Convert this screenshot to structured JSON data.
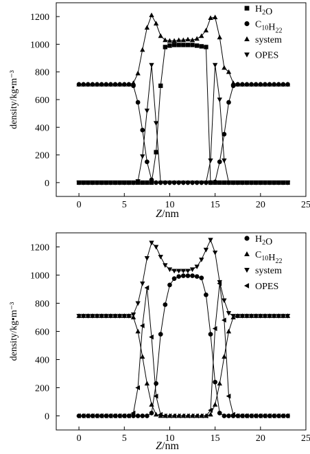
{
  "figure": {
    "panels_count": 2
  },
  "chart_data": [
    {
      "type": "line",
      "title": "",
      "xlabel": "Z/nm",
      "ylabel": "density/kg•m⁻³",
      "xlim": [
        -2.5,
        25
      ],
      "ylim": [
        -100,
        1300
      ],
      "xticks": [
        "0",
        "5",
        "10",
        "15",
        "20",
        "25"
      ],
      "yticks": [
        "0",
        "200",
        "400",
        "600",
        "800",
        "1000",
        "1200"
      ],
      "legend_position": "top-right",
      "legend": [
        "H₂O",
        "C₁₀H₂₂",
        "system",
        "OPES"
      ],
      "legend_parts": [
        {
          "base": "H",
          "sub1": "2",
          "mid": "O",
          "sub2": ""
        },
        {
          "base": "C",
          "sub1": "10",
          "mid": "H",
          "sub2": "22"
        },
        {
          "base": "system",
          "sub1": "",
          "mid": "",
          "sub2": ""
        },
        {
          "base": "OPES",
          "sub1": "",
          "mid": "",
          "sub2": ""
        }
      ],
      "series": [
        {
          "name": "H₂O",
          "marker": "square",
          "x": [
            0,
            0.5,
            1,
            1.5,
            2,
            2.5,
            3,
            3.5,
            4,
            4.5,
            5,
            5.5,
            6,
            6.5,
            7,
            7.5,
            8,
            8.5,
            9,
            9.5,
            10,
            10.5,
            11,
            11.5,
            12,
            12.5,
            13,
            13.5,
            14,
            14.5,
            15,
            15.5,
            16,
            16.5,
            17,
            17.5,
            18,
            18.5,
            19,
            19.5,
            20,
            20.5,
            21,
            21.5,
            22,
            22.5,
            23
          ],
          "y": [
            0,
            0,
            0,
            0,
            0,
            0,
            0,
            0,
            0,
            0,
            0,
            0,
            0,
            0,
            0,
            0,
            0,
            220,
            700,
            980,
            990,
            995,
            995,
            995,
            995,
            995,
            990,
            985,
            980,
            0,
            0,
            0,
            0,
            0,
            0,
            0,
            0,
            0,
            0,
            0,
            0,
            0,
            0,
            0,
            0,
            0,
            0
          ]
        },
        {
          "name": "C₁₀H₂₂",
          "marker": "circle",
          "x": [
            0,
            0.5,
            1,
            1.5,
            2,
            2.5,
            3,
            3.5,
            4,
            4.5,
            5,
            5.5,
            6,
            6.5,
            7,
            7.5,
            8,
            8.5,
            9,
            9.5,
            10,
            10.5,
            11,
            11.5,
            12,
            12.5,
            13,
            13.5,
            14,
            14.5,
            15,
            15.5,
            16,
            16.5,
            17,
            17.5,
            18,
            18.5,
            19,
            19.5,
            20,
            20.5,
            21,
            21.5,
            22,
            22.5,
            23
          ],
          "y": [
            710,
            710,
            710,
            710,
            710,
            710,
            710,
            710,
            710,
            710,
            710,
            710,
            700,
            580,
            380,
            150,
            20,
            0,
            0,
            0,
            0,
            0,
            0,
            0,
            0,
            0,
            0,
            0,
            0,
            0,
            5,
            150,
            350,
            580,
            700,
            710,
            710,
            710,
            710,
            710,
            710,
            710,
            710,
            710,
            710,
            710,
            710
          ]
        },
        {
          "name": "system",
          "marker": "triangle-up",
          "x": [
            0,
            0.5,
            1,
            1.5,
            2,
            2.5,
            3,
            3.5,
            4,
            4.5,
            5,
            5.5,
            6,
            6.5,
            7,
            7.5,
            8,
            8.5,
            9,
            9.5,
            10,
            10.5,
            11,
            11.5,
            12,
            12.5,
            13,
            13.5,
            14,
            14.5,
            15,
            15.5,
            16,
            16.5,
            17,
            17.5,
            18,
            18.5,
            19,
            19.5,
            20,
            20.5,
            21,
            21.5,
            22,
            22.5,
            23
          ],
          "y": [
            710,
            710,
            710,
            710,
            710,
            710,
            710,
            710,
            710,
            710,
            710,
            710,
            720,
            790,
            960,
            1120,
            1210,
            1150,
            1060,
            1030,
            1025,
            1025,
            1030,
            1030,
            1035,
            1030,
            1040,
            1060,
            1100,
            1190,
            1195,
            1050,
            830,
            800,
            720,
            710,
            710,
            710,
            710,
            710,
            710,
            710,
            710,
            710,
            710,
            710,
            710
          ]
        },
        {
          "name": "OPES",
          "marker": "triangle-down",
          "x": [
            0,
            0.5,
            1,
            1.5,
            2,
            2.5,
            3,
            3.5,
            4,
            4.5,
            5,
            5.5,
            6,
            6.5,
            7,
            7.5,
            8,
            8.5,
            9,
            9.5,
            10,
            10.5,
            11,
            11.5,
            12,
            12.5,
            13,
            13.5,
            14,
            14.5,
            15,
            15.5,
            16,
            16.5,
            17,
            17.5,
            18,
            18.5,
            19,
            19.5,
            20,
            20.5,
            21,
            21.5,
            22,
            22.5,
            23
          ],
          "y": [
            0,
            0,
            0,
            0,
            0,
            0,
            0,
            0,
            0,
            0,
            0,
            0,
            0,
            10,
            190,
            520,
            850,
            430,
            0,
            0,
            0,
            0,
            0,
            0,
            0,
            0,
            0,
            0,
            0,
            160,
            850,
            600,
            160,
            0,
            0,
            0,
            0,
            0,
            0,
            0,
            0,
            0,
            0,
            0,
            0,
            0,
            0
          ]
        }
      ]
    },
    {
      "type": "line",
      "title": "",
      "xlabel": "Z/nm",
      "ylabel": "density/kg•m⁻³",
      "xlim": [
        -2.5,
        25
      ],
      "ylim": [
        -100,
        1300
      ],
      "xticks": [
        "0",
        "5",
        "10",
        "15",
        "20",
        "25"
      ],
      "yticks": [
        "0",
        "200",
        "400",
        "600",
        "800",
        "1000",
        "1200"
      ],
      "legend_position": "top-right",
      "legend": [
        "H₂O",
        "C₁₀H₂₂",
        "system",
        "OPES"
      ],
      "legend_parts": [
        {
          "base": "H",
          "sub1": "2",
          "mid": "O",
          "sub2": ""
        },
        {
          "base": "C",
          "sub1": "10",
          "mid": "H",
          "sub2": "22"
        },
        {
          "base": "system",
          "sub1": "",
          "mid": "",
          "sub2": ""
        },
        {
          "base": "OPES",
          "sub1": "",
          "mid": "",
          "sub2": ""
        }
      ],
      "series": [
        {
          "name": "H₂O",
          "marker": "circle",
          "x": [
            0,
            0.5,
            1,
            1.5,
            2,
            2.5,
            3,
            3.5,
            4,
            4.5,
            5,
            5.5,
            6,
            6.5,
            7,
            7.5,
            8,
            8.5,
            9,
            9.5,
            10,
            10.5,
            11,
            11.5,
            12,
            12.5,
            13,
            13.5,
            14,
            14.5,
            15,
            15.5,
            16,
            16.5,
            17,
            17.5,
            18,
            18.5,
            19,
            19.5,
            20,
            20.5,
            21,
            21.5,
            22,
            22.5,
            23
          ],
          "y": [
            0,
            0,
            0,
            0,
            0,
            0,
            0,
            0,
            0,
            0,
            0,
            0,
            0,
            0,
            0,
            0,
            20,
            230,
            580,
            790,
            930,
            975,
            990,
            995,
            995,
            995,
            990,
            980,
            860,
            580,
            240,
            20,
            0,
            0,
            0,
            0,
            0,
            0,
            0,
            0,
            0,
            0,
            0,
            0,
            0,
            0,
            0
          ]
        },
        {
          "name": "C₁₀H₂₂",
          "marker": "triangle-up",
          "x": [
            0,
            0.5,
            1,
            1.5,
            2,
            2.5,
            3,
            3.5,
            4,
            4.5,
            5,
            5.5,
            6,
            6.5,
            7,
            7.5,
            8,
            8.5,
            9,
            9.5,
            10,
            10.5,
            11,
            11.5,
            12,
            12.5,
            13,
            13.5,
            14,
            14.5,
            15,
            15.5,
            16,
            16.5,
            17,
            17.5,
            18,
            18.5,
            19,
            19.5,
            20,
            20.5,
            21,
            21.5,
            22,
            22.5,
            23
          ],
          "y": [
            710,
            710,
            710,
            710,
            710,
            710,
            710,
            710,
            710,
            710,
            710,
            710,
            700,
            600,
            420,
            230,
            80,
            10,
            0,
            0,
            0,
            0,
            0,
            0,
            0,
            0,
            0,
            0,
            0,
            10,
            80,
            230,
            420,
            600,
            700,
            710,
            710,
            710,
            710,
            710,
            710,
            710,
            710,
            710,
            710,
            710,
            710
          ]
        },
        {
          "name": "system",
          "marker": "triangle-down",
          "x": [
            0,
            0.5,
            1,
            1.5,
            2,
            2.5,
            3,
            3.5,
            4,
            4.5,
            5,
            5.5,
            6,
            6.5,
            7,
            7.5,
            8,
            8.5,
            9,
            9.5,
            10,
            10.5,
            11,
            11.5,
            12,
            12.5,
            13,
            13.5,
            14,
            14.5,
            15,
            15.5,
            16,
            16.5,
            17,
            17.5,
            18,
            18.5,
            19,
            19.5,
            20,
            20.5,
            21,
            21.5,
            22,
            22.5,
            23
          ],
          "y": [
            710,
            710,
            710,
            710,
            710,
            710,
            710,
            710,
            710,
            710,
            710,
            710,
            720,
            800,
            940,
            1120,
            1230,
            1200,
            1130,
            1070,
            1040,
            1030,
            1030,
            1030,
            1030,
            1040,
            1060,
            1110,
            1180,
            1250,
            1160,
            950,
            820,
            730,
            710,
            710,
            710,
            710,
            710,
            710,
            710,
            710,
            710,
            710,
            710,
            710,
            710
          ]
        },
        {
          "name": "OPES",
          "marker": "triangle-left",
          "x": [
            0,
            0.5,
            1,
            1.5,
            2,
            2.5,
            3,
            3.5,
            4,
            4.5,
            5,
            5.5,
            6,
            6.5,
            7,
            7.5,
            8,
            8.5,
            9,
            9.5,
            10,
            10.5,
            11,
            11.5,
            12,
            12.5,
            13,
            13.5,
            14,
            14.5,
            15,
            15.5,
            16,
            16.5,
            17,
            17.5,
            18,
            18.5,
            19,
            19.5,
            20,
            20.5,
            21,
            21.5,
            22,
            22.5,
            23
          ],
          "y": [
            0,
            0,
            0,
            0,
            0,
            0,
            0,
            0,
            0,
            0,
            0,
            0,
            20,
            200,
            640,
            910,
            560,
            140,
            10,
            0,
            0,
            0,
            0,
            0,
            0,
            0,
            0,
            0,
            0,
            40,
            620,
            940,
            680,
            140,
            10,
            0,
            0,
            0,
            0,
            0,
            0,
            0,
            0,
            0,
            0,
            0,
            0
          ]
        }
      ]
    }
  ]
}
